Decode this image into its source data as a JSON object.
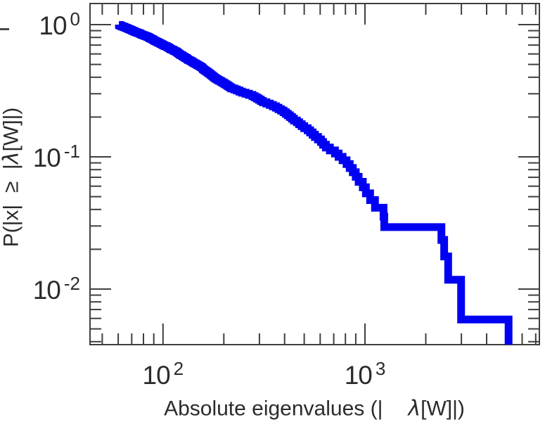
{
  "figure": {
    "background": "#ffffff",
    "xlabel_parts": {
      "prefix": "Absolute eigenvalues (|",
      "lambda": "λ",
      "suffix": "[W]|)"
    },
    "ylabel_parts": {
      "p1": "P(|x|  ≥  |",
      "lambda": "λ",
      "p2": "[W]|)"
    }
  },
  "chart_data": {
    "type": "line",
    "subtype": "empirical_ccdf_log_log_step",
    "title": "",
    "xlabel": "Absolute eigenvalues (|λ[W]|)",
    "ylabel": "P(|x| ≥ |λ[W]|)",
    "x_scale": "log",
    "y_scale": "log",
    "grid": false,
    "legend": null,
    "xlim": [
      43.5,
      7300
    ],
    "ylim": [
      0.0038,
      1.444
    ],
    "line_color": "#0000f2",
    "line_width": 11,
    "axis_color": "#3f3f3f",
    "x_major_ticks": [
      {
        "value": 100,
        "base": "10",
        "exp": "2"
      },
      {
        "value": 1000,
        "base": "10",
        "exp": "3"
      }
    ],
    "x_minor_ticks": [
      50,
      60,
      70,
      80,
      90,
      200,
      300,
      400,
      500,
      600,
      700,
      800,
      900,
      2000,
      3000,
      4000,
      5000,
      6000,
      7000
    ],
    "y_major_ticks": [
      {
        "value": 1,
        "base": "10",
        "exp": "0"
      },
      {
        "value": 0.1,
        "base": "10",
        "exp": "-1"
      },
      {
        "value": 0.01,
        "base": "10",
        "exp": "-2"
      }
    ],
    "y_minor_ticks": [
      0.9,
      0.8,
      0.7,
      0.6,
      0.5,
      0.4,
      0.3,
      0.2,
      0.09,
      0.08,
      0.07,
      0.06,
      0.05,
      0.04,
      0.03,
      0.02,
      0.009,
      0.008,
      0.007,
      0.006,
      0.005,
      0.004
    ],
    "n_values": 170,
    "eigenvalues": [
      5140,
      2990,
      2580,
      2465,
      2390,
      1245,
      1235,
      1120,
      1060,
      1010,
      975,
      930,
      900,
      870,
      840,
      810,
      775,
      740,
      710,
      670,
      640,
      620,
      605,
      585,
      565,
      550,
      535,
      520,
      500,
      486,
      472,
      460,
      445,
      435,
      425,
      415,
      405,
      395,
      384,
      373,
      362,
      350,
      338,
      325,
      312,
      305,
      298,
      291,
      284,
      277,
      266,
      256,
      246,
      239,
      232,
      225,
      218,
      214,
      210,
      207,
      203,
      200,
      196,
      193,
      189,
      186,
      183,
      180,
      178,
      176,
      174,
      172,
      170,
      168,
      166,
      164,
      162,
      160,
      158,
      157,
      156,
      154,
      152,
      150,
      148,
      146,
      144,
      142,
      140,
      139,
      137,
      135,
      133,
      132,
      131,
      129,
      128,
      126,
      125,
      124,
      122,
      121,
      120,
      119,
      118,
      117,
      116,
      114,
      113,
      112,
      110,
      109,
      108,
      107,
      106,
      105,
      104,
      102,
      101,
      100,
      99,
      98,
      97,
      96,
      95,
      94,
      93,
      92,
      91,
      90,
      89.5,
      89,
      88,
      87,
      86,
      85.5,
      85,
      84,
      83,
      82,
      81,
      80,
      79,
      78,
      77.5,
      77,
      76,
      75,
      74,
      73,
      72.5,
      72,
      71,
      70.5,
      70,
      69,
      68.5,
      68,
      67,
      66.5,
      66,
      65,
      64.5,
      64,
      63,
      62.5,
      62,
      61.5,
      61,
      60.5
    ]
  }
}
